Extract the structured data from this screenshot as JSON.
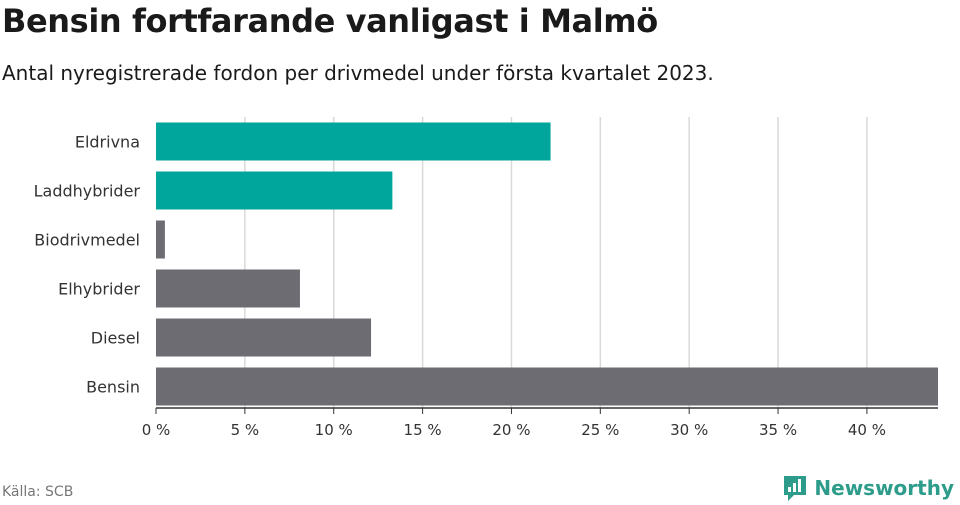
{
  "title": "Bensin fortfarande vanligast i Malmö",
  "subtitle": "Antal nyregistrerade fordon per drivmedel under första kvartalet 2023.",
  "source": "Källa: SCB",
  "brand": "Newsworthy",
  "colors": {
    "highlight": "#00a59b",
    "base": "#6d6c72",
    "grid": "#d9d9d9",
    "brand": "#2e9c8a"
  },
  "chart_data": {
    "type": "bar",
    "orientation": "horizontal",
    "categories": [
      "Eldrivna",
      "Laddhybrider",
      "Biodrivmedel",
      "Elhybrider",
      "Diesel",
      "Bensin"
    ],
    "values": [
      22.2,
      13.3,
      0.5,
      8.1,
      12.1,
      44.0
    ],
    "highlighted": [
      true,
      true,
      false,
      false,
      false,
      false
    ],
    "xlim": [
      0,
      44
    ],
    "xticks": [
      0,
      5,
      10,
      15,
      20,
      25,
      30,
      35,
      40
    ],
    "tick_suffix": " %",
    "grid": true
  }
}
